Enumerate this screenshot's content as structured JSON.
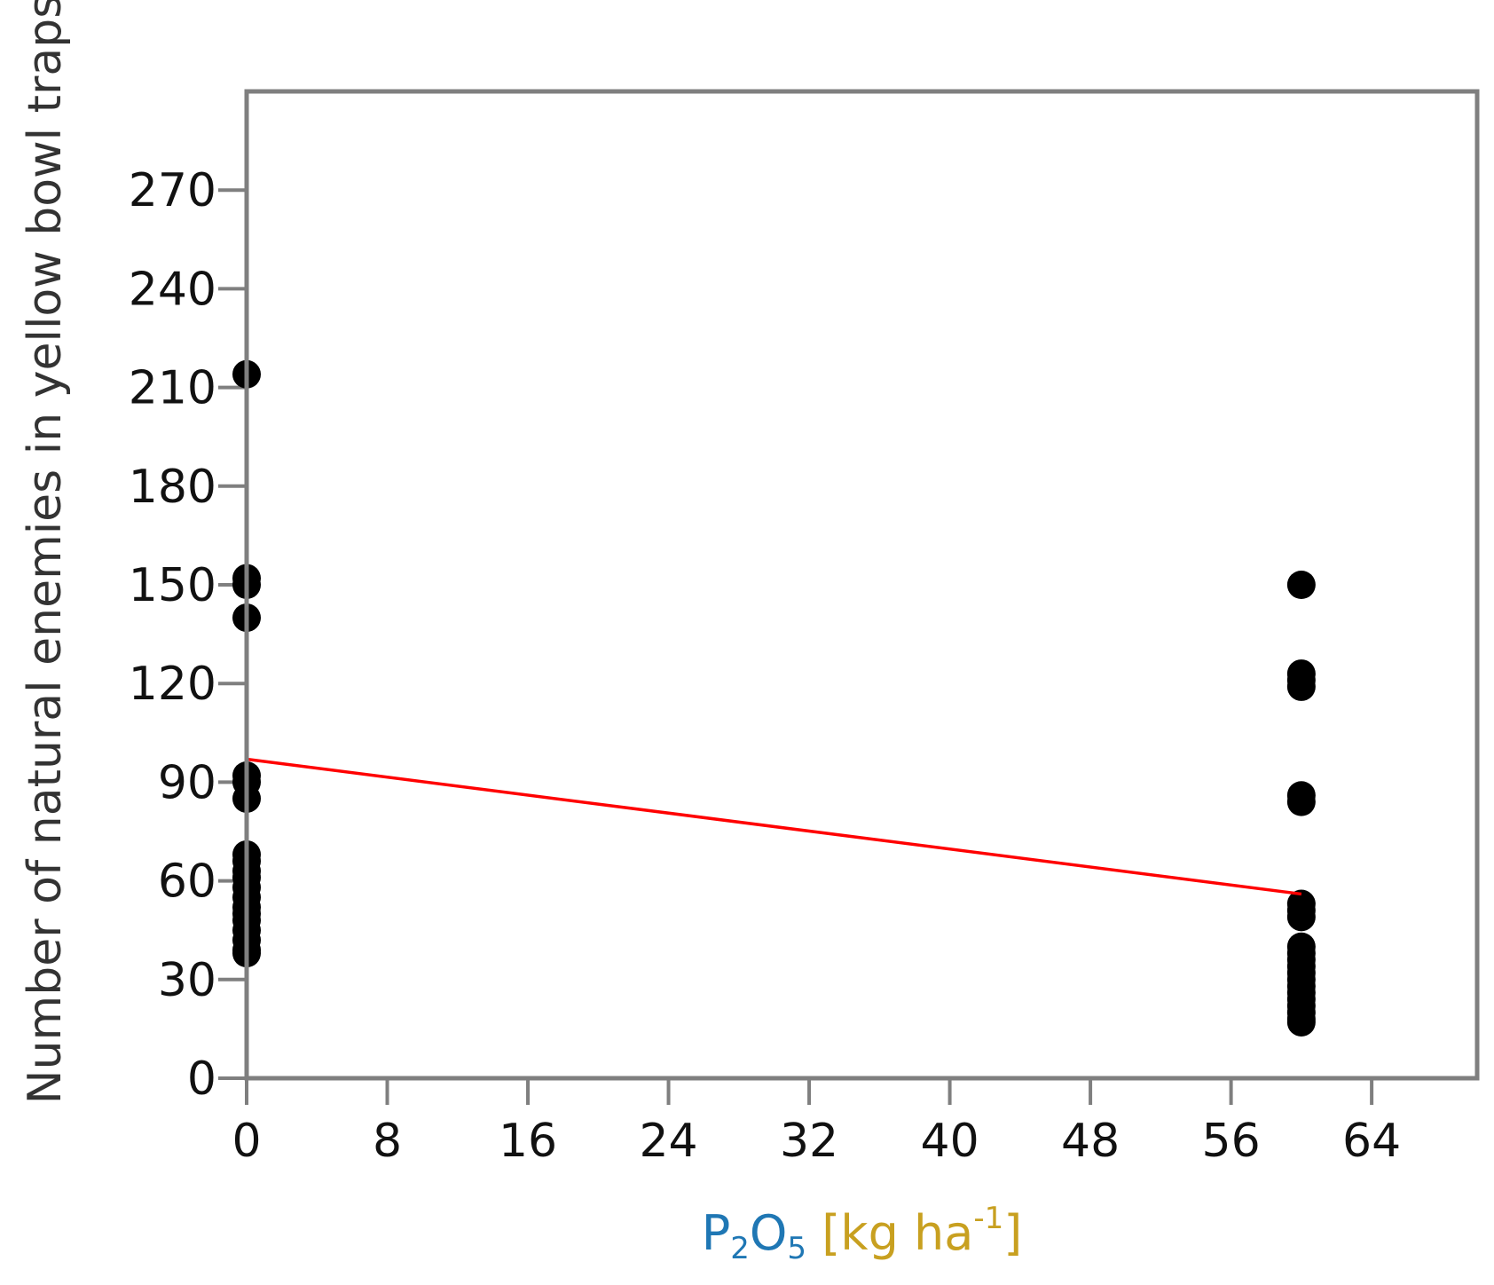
{
  "chart_data": {
    "type": "scatter",
    "title": "",
    "xlabel": {
      "parts": [
        {
          "text": "P",
          "style": "normal"
        },
        {
          "text": "2",
          "style": "sub"
        },
        {
          "text": "O",
          "style": "normal"
        },
        {
          "text": "5",
          "style": "sub"
        },
        {
          "text": " [kg ha",
          "style": "normal"
        },
        {
          "text": "-1",
          "style": "sup"
        },
        {
          "text": "]",
          "style": "normal"
        }
      ]
    },
    "ylabel": "Number of natural enemies in yellow bowl traps",
    "xlim": [
      0,
      70
    ],
    "ylim": [
      0,
      300
    ],
    "xticks": [
      0,
      8,
      16,
      24,
      32,
      40,
      48,
      56,
      64
    ],
    "yticks": [
      0,
      30,
      60,
      90,
      120,
      150,
      180,
      210,
      240,
      270
    ],
    "grid": false,
    "series": [
      {
        "x": [
          0,
          0,
          0,
          0,
          0,
          0,
          0,
          0,
          0,
          0,
          0,
          0,
          0,
          0,
          0,
          0,
          0,
          0,
          0,
          0,
          60,
          60,
          60,
          60,
          60,
          60,
          60,
          60,
          60,
          60,
          60,
          60,
          60,
          60,
          60,
          60,
          60,
          60,
          60,
          60,
          60,
          60
        ],
        "y": [
          214,
          152,
          150,
          140,
          92,
          90,
          85,
          68,
          66,
          63,
          61,
          58,
          55,
          52,
          50,
          48,
          45,
          42,
          39,
          38,
          150,
          123,
          121,
          119,
          86,
          84,
          53,
          51,
          49,
          40,
          38,
          36,
          34,
          32,
          30,
          28,
          26,
          24,
          22,
          20,
          18,
          17
        ]
      }
    ],
    "fit_line": {
      "x": [
        0,
        60
      ],
      "y": [
        97,
        56
      ]
    },
    "colors": {
      "points": "#000000",
      "fit": "#ff0000",
      "frame": "#7f7f7f",
      "xlabel": "#1f77b4",
      "xlabel_bracket": "#c8a020",
      "ylabel": "#333333"
    }
  }
}
